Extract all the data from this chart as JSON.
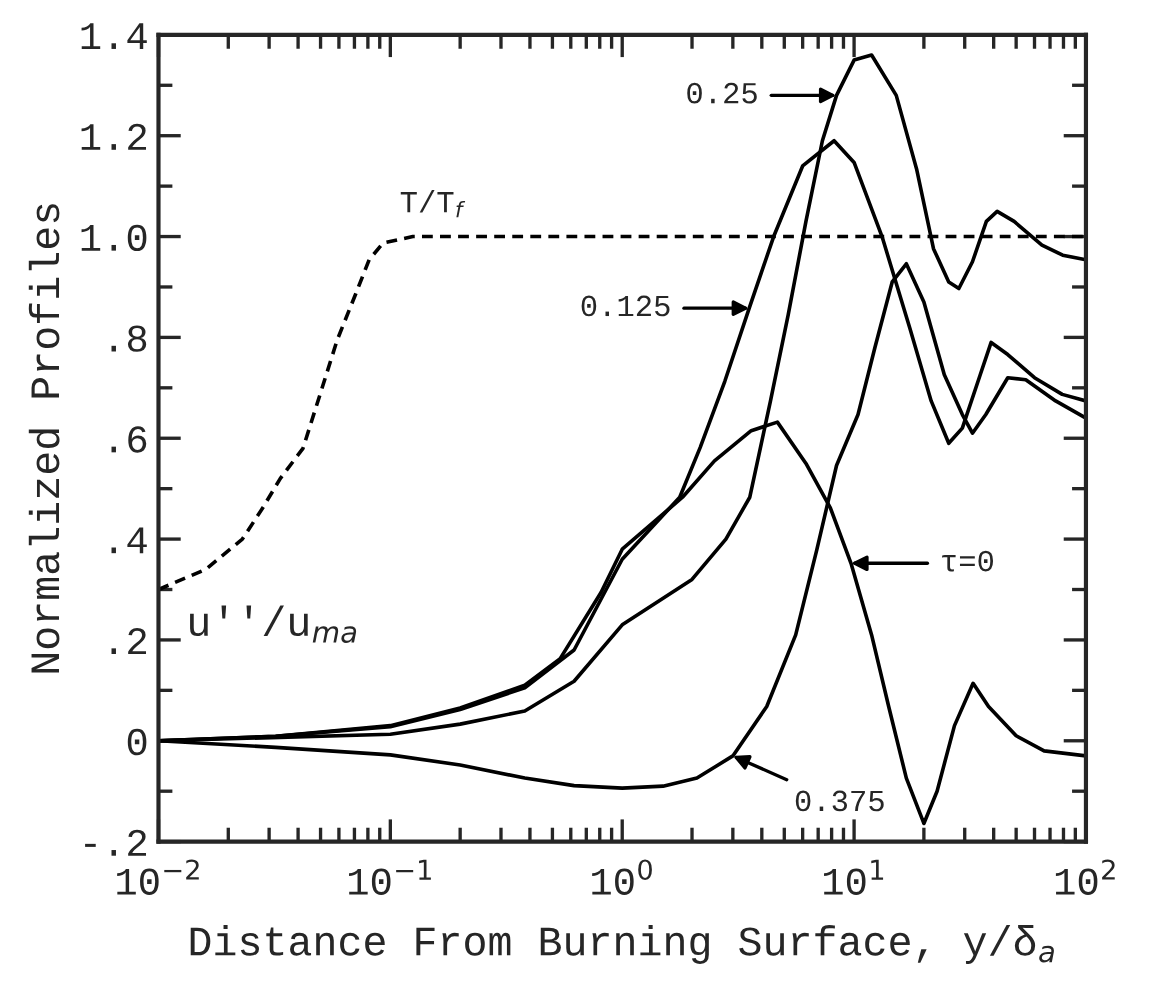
{
  "chart_data": {
    "type": "line",
    "xlabel": "Distance From Burning Surface, y/δ$_{a}$",
    "ylabel": "Normalized Profiles",
    "log": "x",
    "xlim": [
      0.01,
      100
    ],
    "xticks": [
      {
        "value": 0.01,
        "label": "10$^{−2}$"
      },
      {
        "value": 0.1,
        "label": "10$^{−1}$"
      },
      {
        "value": 1,
        "label": "10$^{0}$"
      },
      {
        "value": 10,
        "label": "10$^{1}$"
      },
      {
        "value": 100,
        "label": "10$^{2}$"
      }
    ],
    "ylim": [
      -0.2,
      1.4
    ],
    "yticks": [
      {
        "value": -0.2,
        "label": "-.2"
      },
      0,
      {
        "value": 0.2,
        "label": ".2"
      },
      {
        "value": 0.4,
        "label": ".4"
      },
      {
        "value": 0.6,
        "label": ".6"
      },
      {
        "value": 0.8,
        "label": ".8"
      },
      {
        "value": 1.0,
        "label": "1.0"
      },
      {
        "value": 1.2,
        "label": "1.2"
      },
      {
        "value": 1.4,
        "label": "1.4"
      }
    ],
    "grid": false,
    "legend": false,
    "series": [
      {
        "color": "#000000",
        "line_style": "dashed",
        "x": [
          0.01,
          0.016,
          0.023,
          0.028,
          0.0335,
          0.042,
          0.05,
          0.059,
          0.071,
          0.081,
          0.093,
          0.125,
          100
        ],
        "values": [
          0.3,
          0.34,
          0.4,
          0.46,
          0.52,
          0.58,
          0.69,
          0.795,
          0.887,
          0.954,
          0.987,
          1.0,
          1.0
        ]
      },
      {
        "color": "#000000",
        "x": [
          0.01,
          0.032,
          0.1,
          0.2,
          0.38,
          0.54,
          0.81,
          1.0,
          1.82,
          2.5,
          3.6,
          4.67,
          6.2,
          7.9,
          9.7,
          11.9,
          14.1,
          16.8,
          20,
          22.8,
          27.1,
          32.6,
          38,
          50,
          66,
          100
        ],
        "values": [
          0,
          0.009,
          0.03,
          0.065,
          0.11,
          0.163,
          0.294,
          0.38,
          0.483,
          0.555,
          0.615,
          0.632,
          0.55,
          0.462,
          0.352,
          0.21,
          0.068,
          -0.074,
          -0.164,
          -0.1,
          0.03,
          0.114,
          0.068,
          0.01,
          -0.02,
          -0.03
        ]
      },
      {
        "color": "#000000",
        "x": [
          0.01,
          0.032,
          0.1,
          0.2,
          0.38,
          0.62,
          1.0,
          1.77,
          2.17,
          2.77,
          3.53,
          4.5,
          6.0,
          8.2,
          10,
          13.2,
          17.4,
          21.5,
          25.6,
          29.3,
          35,
          39,
          46,
          60,
          79,
          100
        ],
        "values": [
          0,
          0.009,
          0.028,
          0.062,
          0.105,
          0.18,
          0.36,
          0.483,
          0.582,
          0.713,
          0.858,
          1.0,
          1.14,
          1.19,
          1.147,
          1.0,
          0.818,
          0.674,
          0.59,
          0.62,
          0.726,
          0.79,
          0.766,
          0.72,
          0.687,
          0.674
        ]
      },
      {
        "color": "#000000",
        "x": [
          0.01,
          0.1,
          0.2,
          0.38,
          0.62,
          1.0,
          2.0,
          2.8,
          3.55,
          4.36,
          5.2,
          6.2,
          7.3,
          8.4,
          10,
          11.9,
          15.2,
          18.6,
          22,
          25.6,
          28.3,
          32.4,
          37.2,
          41.4,
          49,
          64.6,
          79.4,
          100
        ],
        "values": [
          0,
          0.013,
          0.033,
          0.059,
          0.118,
          0.23,
          0.32,
          0.4,
          0.483,
          0.674,
          0.845,
          1.03,
          1.19,
          1.28,
          1.35,
          1.36,
          1.28,
          1.134,
          0.976,
          0.91,
          0.897,
          0.95,
          1.03,
          1.05,
          1.03,
          0.983,
          0.963,
          0.954
        ]
      },
      {
        "color": "#000000",
        "x": [
          0.01,
          0.032,
          0.1,
          0.2,
          0.38,
          0.62,
          1.0,
          1.5,
          2.1,
          3.0,
          4.2,
          5.6,
          6.9,
          8.4,
          10.4,
          12.3,
          14.6,
          16.8,
          20,
          24.5,
          29.3,
          32.4,
          37,
          46,
          55,
          74,
          100
        ],
        "values": [
          0,
          -0.013,
          -0.028,
          -0.048,
          -0.074,
          -0.089,
          -0.094,
          -0.09,
          -0.074,
          -0.03,
          0.068,
          0.21,
          0.378,
          0.546,
          0.647,
          0.78,
          0.91,
          0.946,
          0.87,
          0.726,
          0.647,
          0.61,
          0.647,
          0.72,
          0.716,
          0.674,
          0.64
        ]
      }
    ],
    "annotations": [
      {
        "text": "0.25",
        "x": 8.4,
        "y": 1.28
      },
      {
        "text": "0.125",
        "x": 3.53,
        "y": 0.858
      },
      {
        "text": "τ=0",
        "x": 9.7,
        "y": 0.352
      },
      {
        "text": "0.375",
        "x": 3.0,
        "y": -0.03
      },
      "T/T$_{f}$",
      "u''/u$_{ma}$"
    ]
  }
}
